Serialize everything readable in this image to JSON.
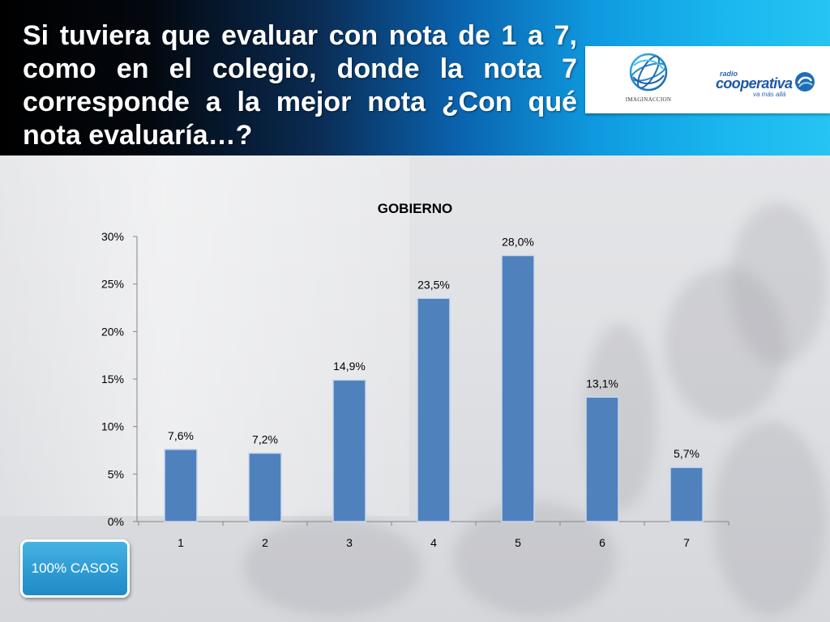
{
  "header": {
    "title": "Si tuviera que evaluar con nota de 1 a 7, como en el colegio, donde la nota 7 corresponde a la mejor nota ¿Con qué nota evaluaría…?"
  },
  "logos": {
    "imaginaccion": {
      "name": "IMAGINACCION",
      "icon": "globe-icon"
    },
    "cooperativa": {
      "prefix": "radio",
      "name": "cooperativa",
      "tagline": "va más allá",
      "icon": "swirl-icon"
    }
  },
  "badge": {
    "label": "100% CASOS"
  },
  "colors": {
    "bar": "#4F81BD",
    "badge": "#2E9BD3",
    "header_accent": "#1AB8EF"
  },
  "chart_data": {
    "type": "bar",
    "title": "GOBIERNO",
    "xlabel": "",
    "ylabel": "",
    "categories": [
      "1",
      "2",
      "3",
      "4",
      "5",
      "6",
      "7"
    ],
    "values": [
      7.6,
      7.2,
      14.9,
      23.5,
      28.0,
      13.1,
      5.7
    ],
    "value_labels": [
      "7,6%",
      "7,2%",
      "14,9%",
      "23,5%",
      "28,0%",
      "13,1%",
      "5,7%"
    ],
    "ylim": [
      0,
      30
    ],
    "yticks": [
      0,
      5,
      10,
      15,
      20,
      25,
      30
    ],
    "ytick_labels": [
      "0%",
      "5%",
      "10%",
      "15%",
      "20%",
      "25%",
      "30%"
    ],
    "grid": false,
    "legend": "none"
  }
}
